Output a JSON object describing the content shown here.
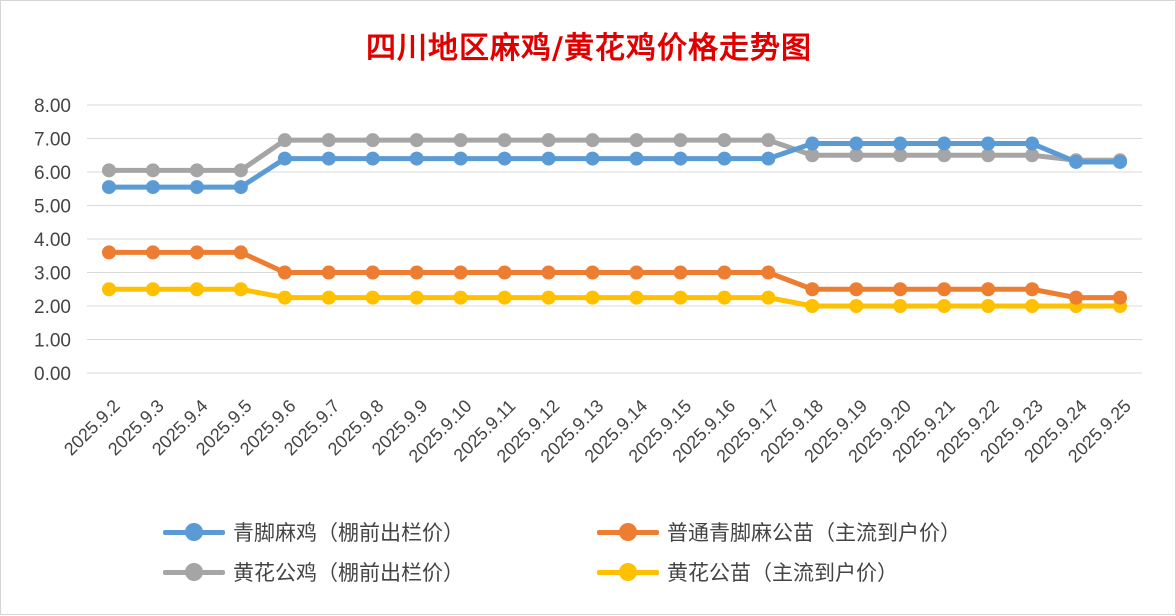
{
  "chart_data": {
    "type": "line",
    "title": "四川地区麻鸡/黄花鸡价格走势图",
    "categories": [
      "2025.9.2",
      "2025.9.3",
      "2025.9.4",
      "2025.9.5",
      "2025.9.6",
      "2025.9.7",
      "2025.9.8",
      "2025.9.9",
      "2025.9.10",
      "2025.9.11",
      "2025.9.12",
      "2025.9.13",
      "2025.9.14",
      "2025.9.15",
      "2025.9.16",
      "2025.9.17",
      "2025.9.18",
      "2025.9.19",
      "2025.9.20",
      "2025.9.21",
      "2025.9.22",
      "2025.9.23",
      "2025.9.24",
      "2025.9.25"
    ],
    "yticks": [
      "0.00",
      "1.00",
      "2.00",
      "3.00",
      "4.00",
      "5.00",
      "6.00",
      "7.00",
      "8.00"
    ],
    "ylim": [
      0,
      8
    ],
    "grid": true,
    "legend_position": "bottom",
    "series": [
      {
        "name": "青脚麻鸡（棚前出栏价）",
        "color": "#5b9bd5",
        "values": [
          5.55,
          5.55,
          5.55,
          5.55,
          6.4,
          6.4,
          6.4,
          6.4,
          6.4,
          6.4,
          6.4,
          6.4,
          6.4,
          6.4,
          6.4,
          6.4,
          6.85,
          6.85,
          6.85,
          6.85,
          6.85,
          6.85,
          6.3,
          6.3
        ]
      },
      {
        "name": "普通青脚麻公苗（主流到户价）",
        "color": "#ed7d31",
        "values": [
          3.6,
          3.6,
          3.6,
          3.6,
          3.0,
          3.0,
          3.0,
          3.0,
          3.0,
          3.0,
          3.0,
          3.0,
          3.0,
          3.0,
          3.0,
          3.0,
          2.5,
          2.5,
          2.5,
          2.5,
          2.5,
          2.5,
          2.25,
          2.25
        ]
      },
      {
        "name": "黄花公鸡（棚前出栏价）",
        "color": "#a5a5a5",
        "values": [
          6.05,
          6.05,
          6.05,
          6.05,
          6.95,
          6.95,
          6.95,
          6.95,
          6.95,
          6.95,
          6.95,
          6.95,
          6.95,
          6.95,
          6.95,
          6.95,
          6.5,
          6.5,
          6.5,
          6.5,
          6.5,
          6.5,
          6.35,
          6.35
        ]
      },
      {
        "name": "黄花公苗（主流到户价）",
        "color": "#ffc000",
        "values": [
          2.5,
          2.5,
          2.5,
          2.5,
          2.25,
          2.25,
          2.25,
          2.25,
          2.25,
          2.25,
          2.25,
          2.25,
          2.25,
          2.25,
          2.25,
          2.25,
          2.0,
          2.0,
          2.0,
          2.0,
          2.0,
          2.0,
          2.0,
          2.0
        ]
      }
    ]
  }
}
